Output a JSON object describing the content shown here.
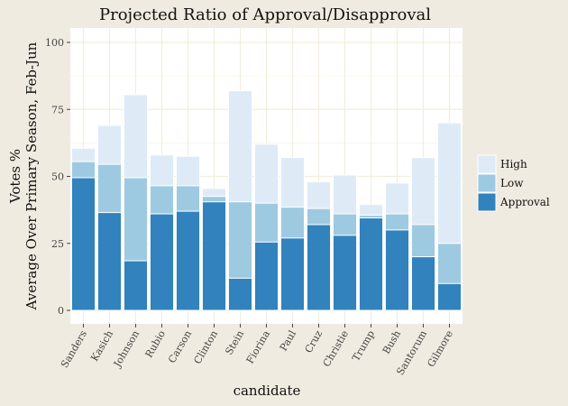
{
  "chart_data": {
    "type": "bar",
    "title": "Projected Ratio of Approval/Disapproval",
    "xlabel": "candidate",
    "ylabel_lines": [
      "Votes %",
      "Average Over Primary Season, Feb-Jun"
    ],
    "ylim": [
      0,
      100
    ],
    "yticks": [
      0,
      25,
      50,
      75,
      100
    ],
    "grid": true,
    "legend_position": "right",
    "categories": [
      "Sanders",
      "Kasich",
      "Johnson",
      "Rubio",
      "Carson",
      "Clinton",
      "Stein",
      "Fiorina",
      "Paul",
      "Cruz",
      "Christie",
      "Trump",
      "Bush",
      "Santorum",
      "Gilmore"
    ],
    "series": [
      {
        "name": "High",
        "values": [
          60.5,
          69,
          80.5,
          58,
          57.5,
          45.5,
          82,
          62,
          57,
          48,
          50.5,
          39.5,
          47.5,
          57,
          70
        ]
      },
      {
        "name": "Low",
        "values": [
          55.5,
          54.5,
          49.5,
          46.5,
          46.5,
          42.5,
          40.5,
          40,
          38.5,
          38,
          36,
          35.5,
          36,
          32,
          25
        ]
      },
      {
        "name": "Approval",
        "values": [
          49.5,
          36.5,
          18.5,
          36,
          37,
          40.5,
          12,
          25.5,
          27,
          32,
          28,
          34.5,
          30,
          20,
          10
        ]
      }
    ],
    "colors": {
      "High": "#deebf7",
      "Low": "#9ecae1",
      "Approval": "#3182bd",
      "panel_bg": "#ffffff",
      "grid": "#f2eddd"
    }
  }
}
